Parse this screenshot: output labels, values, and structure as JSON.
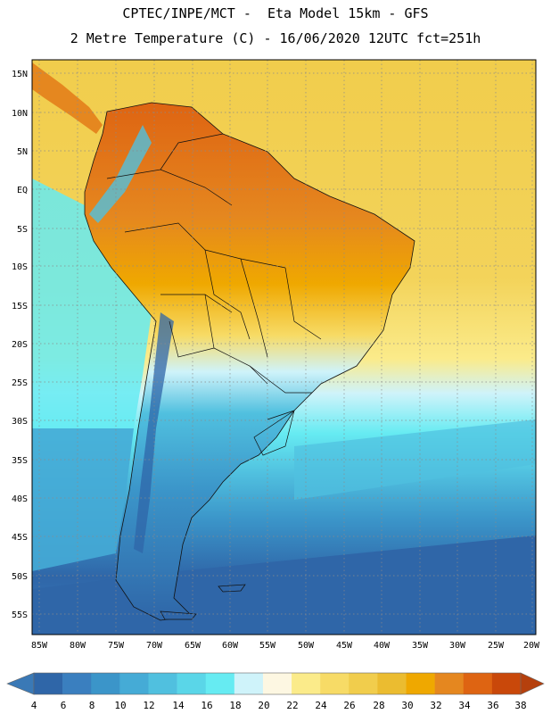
{
  "header": {
    "line1": "CPTEC/INPE/MCT -  Eta Model 15km - GFS",
    "line2": "2 Metre Temperature (C) - 16/06/2020 12UTC fct=251h"
  },
  "map": {
    "latitude_labels": [
      "15N",
      "10N",
      "5N",
      "EQ",
      "5S",
      "10S",
      "15S",
      "20S",
      "25S",
      "30S",
      "35S",
      "40S",
      "45S",
      "50S",
      "55S"
    ],
    "longitude_labels": [
      "85W",
      "80W",
      "75W",
      "70W",
      "65W",
      "60W",
      "55W",
      "50W",
      "45W",
      "40W",
      "35W",
      "30W",
      "25W",
      "20W"
    ]
  },
  "colorbar": {
    "labels": [
      "4",
      "6",
      "8",
      "10",
      "12",
      "14",
      "16",
      "18",
      "20",
      "22",
      "24",
      "26",
      "28",
      "30",
      "32",
      "34",
      "36",
      "38"
    ],
    "low_color": "#3a79b6",
    "high_color": "#b5400d",
    "colors": [
      "#2f66a8",
      "#3a7fbf",
      "#3b95c9",
      "#45abd6",
      "#50c0df",
      "#5ad6e8",
      "#66ebf2",
      "#cff3fa",
      "#fdf7e2",
      "#fbeb8a",
      "#f7db66",
      "#f1cd4c",
      "#ebbc30",
      "#efa800",
      "#e5871f",
      "#de6412",
      "#c9480a"
    ]
  }
}
